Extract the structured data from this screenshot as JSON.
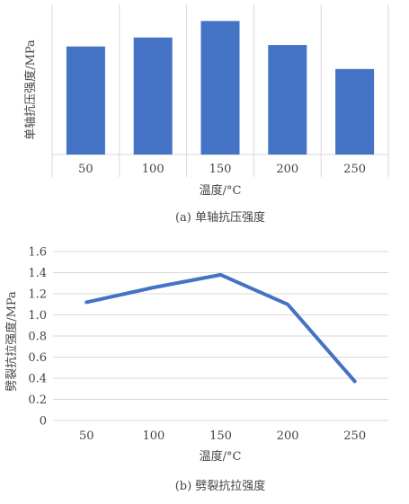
{
  "chart_data": [
    {
      "type": "bar",
      "categories": [
        "50",
        "100",
        "150",
        "200",
        "250"
      ],
      "values": [
        0.72,
        0.78,
        0.89,
        0.73,
        0.57
      ],
      "xlabel": "温度/°C",
      "ylabel": "单轴抗压强度/MPa",
      "caption": "(a) 单轴抗压强度",
      "ylim": [
        0,
        1
      ],
      "grid": "vertical",
      "legend": "none",
      "bar_color": "#4472c4",
      "grid_color": "#d9d9d9"
    },
    {
      "type": "line",
      "categories": [
        "50",
        "100",
        "150",
        "200",
        "250"
      ],
      "x_ticks": [
        "50",
        "100",
        "150",
        "200",
        "250"
      ],
      "y_ticks": [
        "0",
        "0.2",
        "0.4",
        "0.6",
        "0.8",
        "1.0",
        "1.2",
        "1.4",
        "1.6"
      ],
      "values": [
        1.12,
        1.26,
        1.38,
        1.1,
        0.37
      ],
      "xlabel": "温度/°C",
      "ylabel": "劈裂抗拉强度/MPa",
      "caption": "(b) 劈裂抗拉强度",
      "ylim": [
        0,
        1.6
      ],
      "grid": "horizontal",
      "legend": "none",
      "line_color": "#4472c4",
      "grid_color": "#d9d9d9"
    }
  ]
}
